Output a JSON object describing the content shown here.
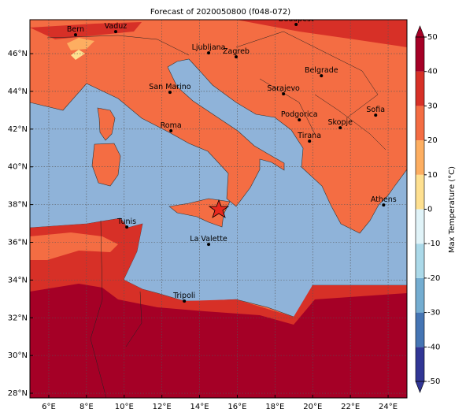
{
  "map": {
    "title": "Forecast of 2020050800 (f048-072)",
    "lon_lim": [
      5,
      25
    ],
    "lat_lim": [
      27.75,
      47.8
    ],
    "lon_ticks": [
      {
        "value": 6,
        "label": "6°E"
      },
      {
        "value": 8,
        "label": "8°E"
      },
      {
        "value": 10,
        "label": "10°E"
      },
      {
        "value": 12,
        "label": "12°E"
      },
      {
        "value": 14,
        "label": "14°E"
      },
      {
        "value": 16,
        "label": "16°E"
      },
      {
        "value": 18,
        "label": "18°E"
      },
      {
        "value": 20,
        "label": "20°E"
      },
      {
        "value": 22,
        "label": "22°E"
      },
      {
        "value": 24,
        "label": "24°E"
      }
    ],
    "lat_ticks": [
      {
        "value": 28,
        "label": "28°N"
      },
      {
        "value": 30,
        "label": "30°N"
      },
      {
        "value": 32,
        "label": "32°N"
      },
      {
        "value": 34,
        "label": "34°N"
      },
      {
        "value": 36,
        "label": "36°N"
      },
      {
        "value": 38,
        "label": "38°N"
      },
      {
        "value": 40,
        "label": "40°N"
      },
      {
        "value": 42,
        "label": "42°N"
      },
      {
        "value": 44,
        "label": "44°N"
      },
      {
        "value": 46,
        "label": "46°N"
      }
    ],
    "grid": true,
    "cities": [
      {
        "name": "Bern",
        "lon": 7.42,
        "lat": 47.0
      },
      {
        "name": "Vaduz",
        "lon": 9.55,
        "lat": 47.17
      },
      {
        "name": "Budapest",
        "lon": 19.12,
        "lat": 47.55
      },
      {
        "name": "Ljubljana",
        "lon": 14.48,
        "lat": 46.04
      },
      {
        "name": "Zagreb",
        "lon": 15.94,
        "lat": 45.83
      },
      {
        "name": "Belgrade",
        "lon": 20.46,
        "lat": 44.83
      },
      {
        "name": "San Marino",
        "lon": 12.43,
        "lat": 43.95
      },
      {
        "name": "Sarajevo",
        "lon": 18.45,
        "lat": 43.87
      },
      {
        "name": "Sofia",
        "lon": 23.34,
        "lat": 42.74
      },
      {
        "name": "Podgorica",
        "lon": 19.29,
        "lat": 42.49
      },
      {
        "name": "Skopje",
        "lon": 21.46,
        "lat": 42.07
      },
      {
        "name": "Roma",
        "lon": 12.48,
        "lat": 41.91
      },
      {
        "name": "Tirana",
        "lon": 19.83,
        "lat": 41.36
      },
      {
        "name": "Athens",
        "lon": 23.76,
        "lat": 37.98
      },
      {
        "name": "Tunis",
        "lon": 10.14,
        "lat": 36.81
      },
      {
        "name": "La Valette",
        "lon": 14.48,
        "lat": 35.89
      },
      {
        "name": "Tripoli",
        "lon": 13.19,
        "lat": 32.88
      }
    ],
    "colorbar": {
      "label": "Max Temperature (°C)",
      "ticks": [
        -50,
        -40,
        -30,
        -20,
        -10,
        0,
        10,
        20,
        30,
        40,
        50
      ],
      "colors": [
        "#313695",
        "#4575b4",
        "#74add1",
        "#abd9e9",
        "#e0f3f8",
        "#fee090",
        "#fdae61",
        "#f46d43",
        "#d73027",
        "#a50026"
      ]
    }
  }
}
